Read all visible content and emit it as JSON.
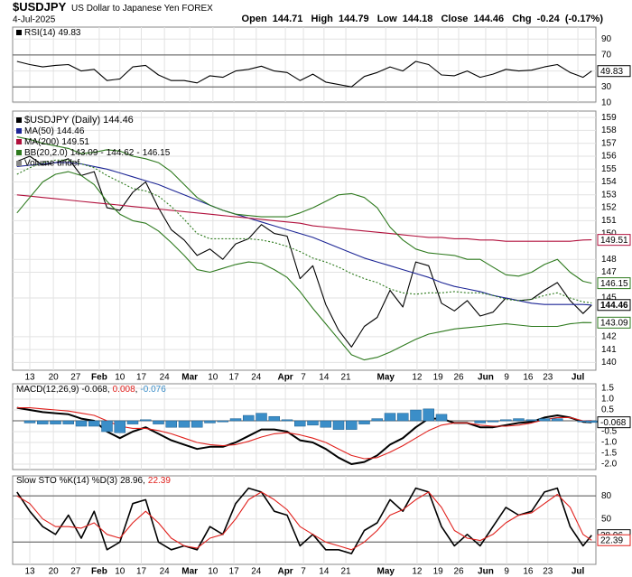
{
  "header": {
    "symbol": "$USDJPY",
    "description": "US Dollar to Japanese Yen FOREX",
    "date": "4-Jul-2025",
    "ohlc": [
      {
        "label": "Open",
        "value": 144.71
      },
      {
        "label": "High",
        "value": 144.79
      },
      {
        "label": "Low",
        "value": 144.18
      },
      {
        "label": "Close",
        "value": 144.46
      }
    ],
    "chg": {
      "label": "Chg",
      "value": -0.24,
      "pct_label": "(-0.17%)"
    }
  },
  "x": [
    -3,
    0,
    3,
    6,
    9,
    12,
    15,
    18,
    21,
    24,
    27,
    30,
    33,
    36,
    39,
    42,
    45,
    48,
    51,
    54,
    57,
    60,
    63,
    66,
    69,
    72,
    75,
    78,
    81,
    84,
    87,
    90,
    93,
    96,
    99,
    102,
    105,
    108,
    111,
    114,
    117,
    120,
    123,
    126,
    129,
    131
  ],
  "xlim": [
    -4,
    132
  ],
  "xticks": [
    {
      "value": 0,
      "label": "13"
    },
    {
      "value": 5.5,
      "label": "20"
    },
    {
      "value": 10.7,
      "label": "27"
    },
    {
      "value": 16.2,
      "label": "Feb"
    },
    {
      "value": 21,
      "label": "10"
    },
    {
      "value": 26,
      "label": "17"
    },
    {
      "value": 31.4,
      "label": "24"
    },
    {
      "value": 37.3,
      "label": "Mar"
    },
    {
      "value": 42.7,
      "label": "10"
    },
    {
      "value": 47.6,
      "label": "17"
    },
    {
      "value": 52.8,
      "label": "24"
    },
    {
      "value": 59.6,
      "label": "Apr"
    },
    {
      "value": 63.8,
      "label": "7"
    },
    {
      "value": 68.6,
      "label": "14"
    },
    {
      "value": 73.7,
      "label": "21"
    },
    {
      "value": 83,
      "label": "May"
    },
    {
      "value": 90.3,
      "label": "12"
    },
    {
      "value": 95.2,
      "label": "19"
    },
    {
      "value": 100,
      "label": "26"
    },
    {
      "value": 106.3,
      "label": "Jun"
    },
    {
      "value": 111.2,
      "label": "9"
    },
    {
      "value": 116.2,
      "label": "16"
    },
    {
      "value": 120.8,
      "label": "23"
    },
    {
      "value": 127.8,
      "label": "Jul"
    }
  ],
  "grid": true,
  "chart_data": [
    {
      "type": "line",
      "ylim": [
        11,
        105
      ],
      "yticks": [
        90,
        70,
        50,
        30,
        10
      ],
      "hlines": [
        70,
        30
      ],
      "series": [
        {
          "name": "RSI(14)",
          "color": "#000000",
          "tag": true,
          "values": [
            62,
            58,
            55,
            57,
            58,
            50,
            52,
            38,
            40,
            55,
            57,
            45,
            38,
            38,
            35,
            44,
            42,
            50,
            52,
            56,
            50,
            48,
            38,
            46,
            36,
            33,
            30,
            43,
            48,
            55,
            50,
            62,
            58,
            45,
            44,
            50,
            42,
            46,
            52,
            50,
            51,
            55,
            58,
            48,
            42,
            49.83
          ]
        }
      ]
    },
    {
      "type": "line",
      "ylim": [
        139.4,
        159.5
      ],
      "yticks": [
        159,
        158,
        157,
        156,
        155,
        154,
        153,
        152,
        151,
        150,
        148,
        147,
        145,
        142,
        141,
        140
      ],
      "hlines": [],
      "volume_label": "Volume undef",
      "separator": "-",
      "series": [
        {
          "name": "$USDJPY (Daily)",
          "color": "#000000",
          "tag": true,
          "values": [
            155.6,
            156.0,
            155.3,
            155.5,
            155.8,
            154.5,
            154.8,
            152.0,
            151.8,
            153.2,
            154.0,
            152.0,
            150.3,
            149.5,
            148.3,
            148.8,
            148.0,
            149.2,
            149.6,
            150.7,
            150.0,
            149.8,
            146.5,
            147.5,
            144.5,
            142.5,
            141.2,
            142.8,
            143.5,
            145.6,
            144.3,
            147.8,
            147.5,
            144.6,
            144.0,
            144.8,
            143.6,
            143.9,
            145.0,
            144.8,
            144.9,
            145.6,
            146.2,
            144.8,
            143.8,
            144.46
          ]
        },
        {
          "name": "MA(50)",
          "color": "#1c2595",
          "values": [
            155.2,
            155.3,
            155.4,
            155.5,
            155.5,
            155.4,
            155.2,
            155.0,
            154.7,
            154.4,
            154.1,
            153.8,
            153.4,
            153.0,
            152.6,
            152.2,
            151.8,
            151.5,
            151.2,
            150.9,
            150.6,
            150.3,
            150.0,
            149.7,
            149.3,
            148.9,
            148.5,
            148.1,
            147.8,
            147.5,
            147.2,
            146.9,
            146.6,
            146.2,
            145.9,
            145.7,
            145.5,
            145.2,
            145.0,
            144.8,
            144.6,
            144.5,
            144.5,
            144.5,
            144.5,
            144.46
          ]
        },
        {
          "name": "MA(200)",
          "color": "#b1103c",
          "tag": true,
          "values": [
            153.0,
            152.9,
            152.8,
            152.7,
            152.6,
            152.5,
            152.4,
            152.3,
            152.2,
            152.1,
            152.0,
            151.9,
            151.8,
            151.7,
            151.6,
            151.5,
            151.4,
            151.3,
            151.2,
            151.1,
            151.0,
            150.9,
            150.8,
            150.6,
            150.5,
            150.4,
            150.3,
            150.2,
            150.1,
            150.0,
            149.9,
            149.8,
            149.7,
            149.7,
            149.6,
            149.6,
            149.5,
            149.5,
            149.4,
            149.4,
            149.4,
            149.4,
            149.4,
            149.4,
            149.5,
            149.51
          ]
        },
        {
          "name": "BB(20,2.0)",
          "color": "#2e7a1e",
          "tag": true,
          "values": [
            151.6,
            152.8,
            154.0,
            154.6,
            154.8,
            154.5,
            153.8,
            152.5,
            151.5,
            151.0,
            150.8,
            150.2,
            149.3,
            148.3,
            147.2,
            147.0,
            147.3,
            147.6,
            147.8,
            147.7,
            147.2,
            146.6,
            145.5,
            144.2,
            143.0,
            141.8,
            140.6,
            140.2,
            140.4,
            140.8,
            141.3,
            141.8,
            142.2,
            142.4,
            142.6,
            142.7,
            142.8,
            142.9,
            143.0,
            142.9,
            142.8,
            142.8,
            142.8,
            143.0,
            143.1,
            143.09
          ]
        },
        {
          "color": "#2e7a1e",
          "dash": true,
          "values": [
            154.6,
            155.1,
            155.5,
            155.7,
            155.7,
            155.4,
            155.1,
            154.5,
            154.0,
            153.5,
            153.3,
            152.9,
            152.1,
            151.1,
            150.0,
            149.6,
            149.6,
            149.6,
            149.6,
            149.5,
            149.3,
            149.0,
            148.6,
            148.1,
            147.8,
            147.4,
            146.9,
            146.5,
            146.2,
            145.7,
            145.4,
            145.3,
            145.4,
            145.4,
            145.5,
            145.4,
            145.4,
            145.2,
            144.9,
            144.8,
            144.9,
            145.2,
            145.4,
            145.0,
            144.7,
            144.62
          ]
        },
        {
          "color": "#2e7a1e",
          "tag": true,
          "values": [
            157.5,
            157.3,
            157.0,
            156.8,
            156.6,
            156.2,
            156.3,
            156.5,
            156.4,
            156.0,
            155.8,
            155.5,
            154.8,
            153.8,
            152.8,
            152.2,
            151.8,
            151.5,
            151.4,
            151.3,
            151.3,
            151.3,
            151.6,
            152.0,
            152.5,
            153.0,
            153.1,
            152.8,
            152.0,
            150.5,
            149.5,
            148.8,
            148.5,
            148.4,
            148.3,
            148.0,
            148.0,
            147.4,
            146.8,
            146.7,
            147.0,
            147.6,
            148.0,
            147.0,
            146.3,
            146.15
          ]
        }
      ]
    },
    {
      "type": "line",
      "title": "MACD(12,26,9)",
      "separator": ",",
      "ylim": [
        -2.25,
        1.71
      ],
      "yticks": [
        1.5,
        {
          "value": 1,
          "label": "1.0"
        },
        0.5,
        {
          "value": 0,
          "label": "0.0"
        },
        -0.5,
        {
          "value": -1,
          "label": "-1.0"
        },
        -1.5,
        {
          "value": -2,
          "label": "-2.0"
        }
      ],
      "hlines": [
        0
      ],
      "series": [
        {
          "color": "#000000",
          "width": 2,
          "tag": true,
          "values": [
            0.6,
            0.5,
            0.4,
            0.35,
            0.3,
            0.1,
            0.0,
            -0.5,
            -0.8,
            -0.5,
            -0.3,
            -0.6,
            -0.9,
            -1.1,
            -1.3,
            -1.2,
            -1.2,
            -1.0,
            -0.7,
            -0.4,
            -0.4,
            -0.5,
            -0.9,
            -1.0,
            -1.3,
            -1.7,
            -2.0,
            -1.9,
            -1.6,
            -1.1,
            -0.8,
            -0.3,
            0.1,
            0.1,
            -0.1,
            -0.1,
            -0.3,
            -0.3,
            -0.2,
            -0.1,
            -0.05,
            0.15,
            0.25,
            0.15,
            -0.05,
            -0.068
          ]
        },
        {
          "color": "#e0201c",
          "values": [
            0.6,
            0.6,
            0.55,
            0.5,
            0.45,
            0.35,
            0.25,
            0.0,
            -0.25,
            -0.35,
            -0.35,
            -0.45,
            -0.6,
            -0.8,
            -1.0,
            -1.1,
            -1.15,
            -1.1,
            -0.95,
            -0.75,
            -0.6,
            -0.55,
            -0.65,
            -0.8,
            -1.0,
            -1.3,
            -1.6,
            -1.75,
            -1.7,
            -1.45,
            -1.15,
            -0.8,
            -0.45,
            -0.2,
            -0.1,
            -0.1,
            -0.2,
            -0.25,
            -0.25,
            -0.2,
            -0.1,
            0.05,
            0.15,
            0.15,
            0.0,
            0.008
          ]
        },
        {
          "color": "#3b8ec8",
          "style": "bar",
          "values": [
            0,
            -0.1,
            -0.15,
            -0.15,
            -0.15,
            -0.25,
            -0.25,
            -0.5,
            -0.55,
            -0.15,
            0.05,
            -0.15,
            -0.3,
            -0.3,
            -0.3,
            -0.1,
            -0.05,
            0.1,
            0.25,
            0.35,
            0.2,
            0.05,
            -0.25,
            -0.2,
            -0.3,
            -0.4,
            -0.4,
            -0.15,
            0.1,
            0.35,
            0.35,
            0.5,
            0.55,
            0.3,
            0.0,
            0.0,
            -0.1,
            -0.05,
            0.05,
            0.1,
            0.05,
            0.1,
            0.1,
            0.0,
            -0.05,
            -0.076
          ]
        }
      ]
    },
    {
      "type": "line",
      "title": "Slow STO %K(14) %D(3)",
      "separator": ",",
      "ylim": [
        -9,
        106
      ],
      "yticks": [
        80,
        50,
        20
      ],
      "hlines": [
        80,
        20
      ],
      "series": [
        {
          "color": "#000000",
          "width": 1.6,
          "tag": true,
          "values": [
            85,
            60,
            40,
            30,
            55,
            25,
            60,
            10,
            20,
            70,
            75,
            20,
            10,
            15,
            10,
            40,
            30,
            70,
            90,
            85,
            60,
            55,
            15,
            30,
            10,
            10,
            5,
            35,
            45,
            75,
            60,
            90,
            85,
            40,
            15,
            30,
            15,
            40,
            65,
            55,
            60,
            85,
            90,
            40,
            15,
            28.96
          ]
        },
        {
          "color": "#e0201c",
          "tag": true,
          "values": [
            80,
            70,
            50,
            40,
            40,
            38,
            45,
            30,
            25,
            45,
            60,
            45,
            25,
            15,
            12,
            25,
            30,
            50,
            75,
            85,
            75,
            62,
            40,
            30,
            20,
            15,
            10,
            20,
            35,
            55,
            62,
            75,
            85,
            65,
            35,
            25,
            22,
            30,
            45,
            55,
            58,
            70,
            82,
            65,
            30,
            22.39
          ]
        }
      ]
    }
  ]
}
